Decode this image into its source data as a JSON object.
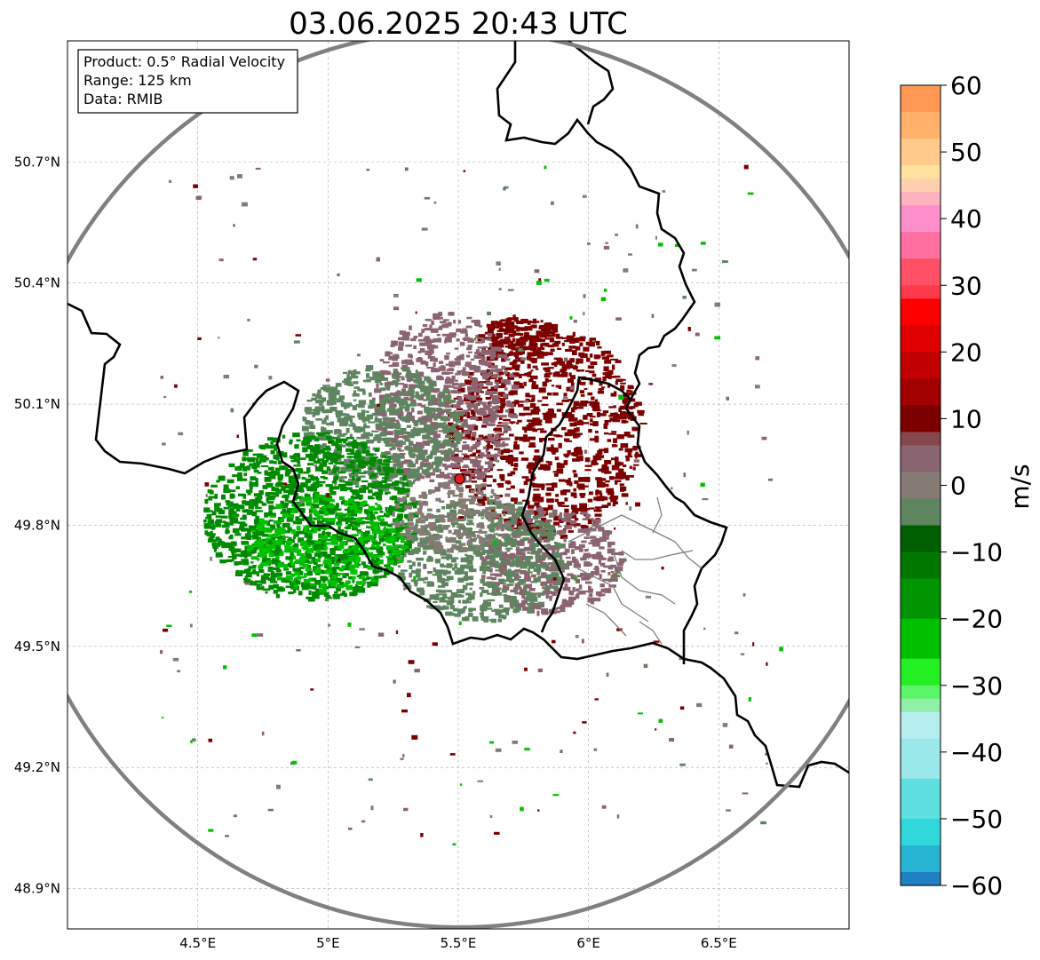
{
  "title": "03.06.2025 20:43 UTC",
  "info_box": {
    "product": "Product: 0.5° Radial Velocity",
    "range": "Range: 125 km",
    "data": "Data: RMIB"
  },
  "map": {
    "lon_range": [
      4.0,
      7.0
    ],
    "lat_range": [
      48.8,
      51.0
    ],
    "lon_ticks": [
      {
        "value": 4.5,
        "label": "4.5°E"
      },
      {
        "value": 5.0,
        "label": "5°E"
      },
      {
        "value": 5.5,
        "label": "5.5°E"
      },
      {
        "value": 6.0,
        "label": "6°E"
      },
      {
        "value": 6.5,
        "label": "6.5°E"
      }
    ],
    "lat_ticks": [
      {
        "value": 50.7,
        "label": "50.7°N"
      },
      {
        "value": 50.4,
        "label": "50.4°N"
      },
      {
        "value": 50.1,
        "label": "50.1°N"
      },
      {
        "value": 49.8,
        "label": "49.8°N"
      },
      {
        "value": 49.5,
        "label": "49.5°N"
      },
      {
        "value": 49.2,
        "label": "49.2°N"
      },
      {
        "value": 48.9,
        "label": "48.9°N"
      }
    ],
    "grid": true,
    "radar_site": {
      "lon": 5.505,
      "lat": 49.915
    },
    "range_ring_color": "#808080",
    "site_color": "#e31a1c"
  },
  "colorbar": {
    "label": "m/s",
    "min": -60,
    "max": 60,
    "ticks": [
      {
        "value": 60,
        "label": "60"
      },
      {
        "value": 50,
        "label": "50"
      },
      {
        "value": 40,
        "label": "40"
      },
      {
        "value": 30,
        "label": "30"
      },
      {
        "value": 20,
        "label": "20"
      },
      {
        "value": 10,
        "label": "10"
      },
      {
        "value": 0,
        "label": "0"
      },
      {
        "value": -10,
        "label": "−10"
      },
      {
        "value": -20,
        "label": "−20"
      },
      {
        "value": -30,
        "label": "−30"
      },
      {
        "value": -40,
        "label": "−40"
      },
      {
        "value": -50,
        "label": "−50"
      },
      {
        "value": -60,
        "label": "−60"
      }
    ],
    "stops": [
      {
        "from": 56,
        "to": 60,
        "color": "#ff9955"
      },
      {
        "from": 52,
        "to": 56,
        "color": "#ffb06a"
      },
      {
        "from": 48,
        "to": 52,
        "color": "#ffc98a"
      },
      {
        "from": 46,
        "to": 48,
        "color": "#ffe29e"
      },
      {
        "from": 44,
        "to": 46,
        "color": "#ffd0b0"
      },
      {
        "from": 42,
        "to": 44,
        "color": "#ffb2bf"
      },
      {
        "from": 38,
        "to": 42,
        "color": "#ff8fcc"
      },
      {
        "from": 34,
        "to": 38,
        "color": "#ff6f9f"
      },
      {
        "from": 30,
        "to": 34,
        "color": "#ff5068"
      },
      {
        "from": 28,
        "to": 30,
        "color": "#ff3a4a"
      },
      {
        "from": 24,
        "to": 28,
        "color": "#ff0000"
      },
      {
        "from": 20,
        "to": 24,
        "color": "#e00000"
      },
      {
        "from": 16,
        "to": 20,
        "color": "#c00000"
      },
      {
        "from": 12,
        "to": 16,
        "color": "#a00000"
      },
      {
        "from": 8,
        "to": 12,
        "color": "#7c0000"
      },
      {
        "from": 6,
        "to": 8,
        "color": "#86474c"
      },
      {
        "from": 2,
        "to": 6,
        "color": "#8a6470"
      },
      {
        "from": -2,
        "to": 2,
        "color": "#857a74"
      },
      {
        "from": -6,
        "to": -2,
        "color": "#5e8460"
      },
      {
        "from": -10,
        "to": -6,
        "color": "#005f00"
      },
      {
        "from": -14,
        "to": -10,
        "color": "#007800"
      },
      {
        "from": -20,
        "to": -14,
        "color": "#009400"
      },
      {
        "from": -26,
        "to": -20,
        "color": "#00c000"
      },
      {
        "from": -30,
        "to": -26,
        "color": "#22f022"
      },
      {
        "from": -32,
        "to": -30,
        "color": "#5cf56a"
      },
      {
        "from": -34,
        "to": -32,
        "color": "#90f0a8"
      },
      {
        "from": -38,
        "to": -34,
        "color": "#b6eef0"
      },
      {
        "from": -44,
        "to": -38,
        "color": "#9ae8ea"
      },
      {
        "from": -50,
        "to": -44,
        "color": "#5ee0e0"
      },
      {
        "from": -54,
        "to": -50,
        "color": "#30d8dc"
      },
      {
        "from": -58,
        "to": -54,
        "color": "#26b4d2"
      },
      {
        "from": -60,
        "to": -58,
        "color": "#2080c4"
      }
    ]
  },
  "echo_colors": {
    "outbound_far": "#7c0000",
    "outbound_mid": "#8a6470",
    "zero": "#857a74",
    "inbound_mid": "#5e8460",
    "inbound_near": "#008a00",
    "inbound_fast": "#00c000"
  }
}
